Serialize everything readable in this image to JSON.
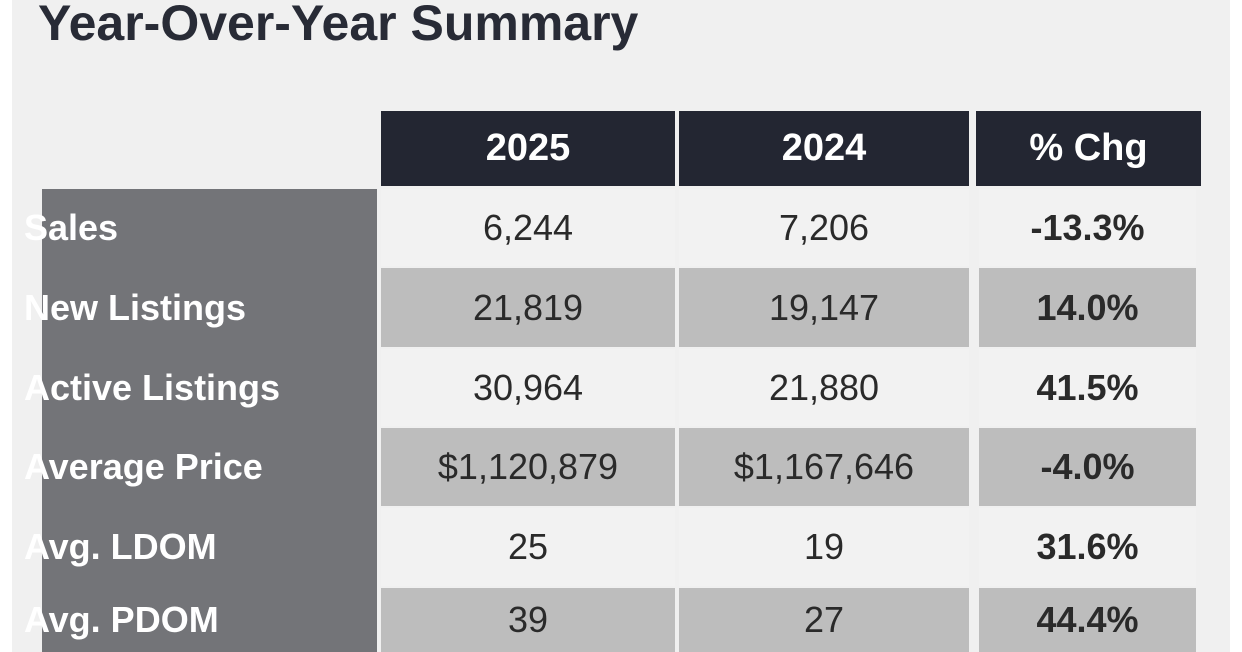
{
  "title": "Year-Over-Year Summary",
  "columns": [
    "2025",
    "2024",
    "% Chg"
  ],
  "rows": [
    {
      "label": "Sales",
      "y2025": "6,244",
      "y2024": "7,206",
      "chg": "-13.3%"
    },
    {
      "label": "New Listings",
      "y2025": "21,819",
      "y2024": "19,147",
      "chg": "14.0%"
    },
    {
      "label": "Active Listings",
      "y2025": "30,964",
      "y2024": "21,880",
      "chg": "41.5%"
    },
    {
      "label": "Average Price",
      "y2025": "$1,120,879",
      "y2024": "$1,167,646",
      "chg": "-4.0%"
    },
    {
      "label": "Avg. LDOM",
      "y2025": "25",
      "y2024": "19",
      "chg": "31.6%"
    },
    {
      "label": "Avg. PDOM",
      "y2025": "39",
      "y2024": "27",
      "chg": "44.4%"
    }
  ],
  "colors": {
    "header": "#232632",
    "label_bg": "#737478",
    "row_light": "#f2f2f2",
    "row_dark": "#bdbdbd"
  }
}
